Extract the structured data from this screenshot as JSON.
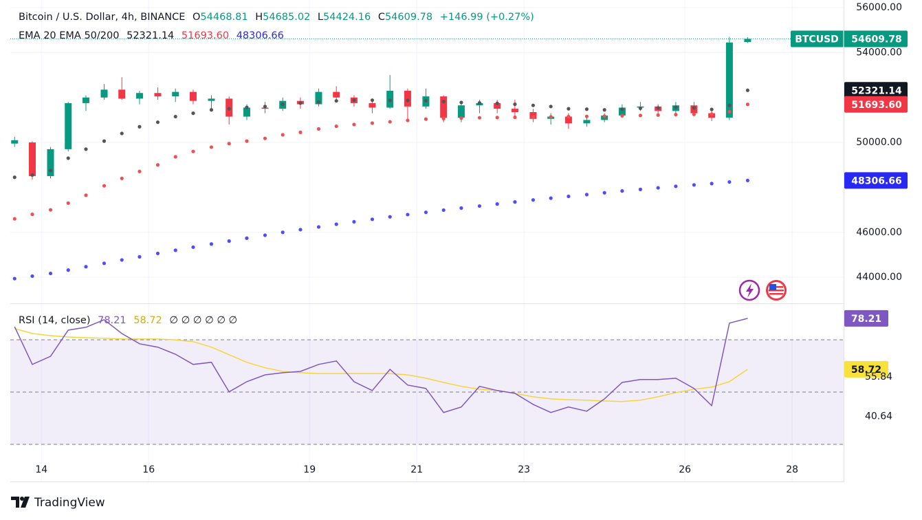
{
  "chart_data": [
    {
      "type": "candlestick",
      "title": "Bitcoin / U.S. Dollar, 4h, BINANCE",
      "ohlc_prefixes": [
        "O",
        "H",
        "L",
        "C"
      ],
      "change": "+146.99 (+0.27%)",
      "symbol": "BTCUSD",
      "indicator_label": "EMA 20 EMA 50/200",
      "up_color": "#089981",
      "down_color": "#f23645",
      "x": [
        13.5,
        13.83,
        14.17,
        14.5,
        14.83,
        15.17,
        15.5,
        15.83,
        16.17,
        16.5,
        16.83,
        17.17,
        17.5,
        17.83,
        18.17,
        18.5,
        18.83,
        19.17,
        19.5,
        19.83,
        20.17,
        20.5,
        20.83,
        21.17,
        21.5,
        21.83,
        22.17,
        22.5,
        22.83,
        23.17,
        23.5,
        23.83,
        24.17,
        24.5,
        24.83,
        25.17,
        25.5,
        25.83,
        26.17,
        26.5,
        26.83,
        27.17
      ],
      "open": [
        49950,
        50000,
        48500,
        49700,
        51750,
        52000,
        52350,
        51950,
        52200,
        52050,
        52250,
        51850,
        51950,
        51150,
        51550,
        51500,
        51850,
        51700,
        52250,
        52000,
        51750,
        51550,
        52300,
        51600,
        52050,
        51100,
        51650,
        51750,
        51500,
        51350,
        51050,
        51150,
        50850,
        51000,
        51200,
        51550,
        51600,
        51400,
        51650,
        51300,
        51100,
        54468.81
      ],
      "high": [
        50250,
        50050,
        49800,
        51800,
        52100,
        52600,
        52900,
        52300,
        52450,
        52400,
        52350,
        52100,
        52050,
        51700,
        51800,
        52000,
        52000,
        52400,
        52500,
        52100,
        51900,
        53000,
        52400,
        52400,
        52100,
        51800,
        51900,
        51900,
        51900,
        51500,
        51300,
        51300,
        51100,
        51300,
        51700,
        51800,
        51700,
        51800,
        51800,
        51500,
        54700,
        54685.02
      ],
      "low": [
        49800,
        48350,
        48400,
        49600,
        51400,
        51900,
        51900,
        51700,
        51900,
        51800,
        51700,
        51500,
        50800,
        51000,
        51300,
        51400,
        51500,
        51600,
        51900,
        51600,
        51300,
        51500,
        51000,
        51500,
        50900,
        50900,
        51300,
        51300,
        51200,
        50900,
        50800,
        50600,
        50700,
        50900,
        51100,
        51400,
        51200,
        51300,
        51200,
        50950,
        51000,
        54424.16
      ],
      "close": [
        50100,
        48500,
        49700,
        51750,
        52000,
        52350,
        51950,
        52200,
        52050,
        52250,
        51850,
        51950,
        51150,
        51550,
        51500,
        51850,
        51700,
        52250,
        52000,
        51750,
        51550,
        52300,
        51600,
        52050,
        51100,
        51650,
        51750,
        51500,
        51350,
        51050,
        51150,
        50850,
        51000,
        51200,
        51550,
        51600,
        51400,
        51650,
        51300,
        51100,
        54450,
        54609.78
      ],
      "series": [
        {
          "color": "#555555",
          "last_label": "52321.14",
          "values": [
            48450,
            48550,
            48750,
            49300,
            49700,
            50060,
            50400,
            50700,
            50900,
            51150,
            51300,
            51450,
            51500,
            51560,
            51600,
            51700,
            51750,
            51800,
            51850,
            51880,
            51880,
            51870,
            51870,
            51860,
            51820,
            51780,
            51760,
            51740,
            51700,
            51650,
            51600,
            51500,
            51480,
            51450,
            51480,
            51520,
            51540,
            51560,
            51540,
            51470,
            51650,
            52321.14
          ]
        },
        {
          "color": "#f0504f",
          "last_label": "51693.60",
          "values": [
            46600,
            46800,
            47000,
            47300,
            47650,
            48070,
            48400,
            48710,
            49000,
            49360,
            49600,
            49790,
            49950,
            50060,
            50180,
            50340,
            50450,
            50600,
            50720,
            50800,
            50860,
            50920,
            50980,
            51040,
            51060,
            51080,
            51100,
            51110,
            51120,
            51130,
            51140,
            51150,
            51160,
            51170,
            51190,
            51200,
            51220,
            51240,
            51250,
            51260,
            51370,
            51693.6
          ]
        },
        {
          "color": "#4d4dff",
          "last_label": "48306.66",
          "values": [
            43940,
            44050,
            44170,
            44320,
            44470,
            44620,
            44770,
            44910,
            45060,
            45200,
            45340,
            45480,
            45610,
            45740,
            45870,
            46000,
            46120,
            46240,
            46360,
            46470,
            46580,
            46690,
            46790,
            46890,
            46990,
            47080,
            47170,
            47260,
            47350,
            47440,
            47520,
            47600,
            47680,
            47760,
            47840,
            47910,
            47980,
            48050,
            48110,
            48170,
            48240,
            48306.66
          ]
        }
      ],
      "xlim": [
        13.42,
        28.96
      ],
      "xticks": [
        14,
        16,
        19,
        21,
        23,
        26,
        28
      ],
      "ylim": [
        42870,
        56340
      ],
      "yticks": [
        {
          "value": 44000,
          "label": "44000.00"
        },
        {
          "value": 46000,
          "label": "46000.00"
        },
        {
          "value": 50000,
          "label": "50000.00"
        },
        {
          "value": 54000,
          "label": "54000.00"
        },
        {
          "value": 56000,
          "label": "56000.00"
        }
      ],
      "grid": true
    },
    {
      "type": "line",
      "title": "RSI (14, close)",
      "placeholders": "∅ ∅ ∅ ∅ ∅ ∅",
      "series": [
        {
          "color": "#7e57c2",
          "label_color": "#7e57c2",
          "values": [
            75.05,
            60.6,
            63.7,
            73.7,
            74.8,
            77.7,
            72.4,
            68.5,
            67.2,
            64.5,
            60.6,
            61.4,
            50.1,
            54.0,
            56.6,
            57.4,
            57.9,
            60.6,
            61.9,
            54.0,
            50.6,
            58.7,
            52.7,
            51.4,
            42.2,
            44.3,
            52.2,
            50.6,
            49.5,
            45.3,
            42.2,
            44.3,
            42.7,
            47.4,
            53.7,
            54.8,
            54.8,
            55.3,
            51.4,
            44.8,
            76.4,
            78.21
          ]
        },
        {
          "color": "#f7d43a",
          "label_color": "#d4ac0d",
          "values": [
            74.3,
            72.4,
            71.6,
            71.1,
            70.8,
            70.6,
            70.3,
            70.3,
            70.3,
            70.0,
            69.3,
            67.2,
            64.3,
            61.4,
            59.3,
            57.9,
            57.4,
            57.1,
            57.1,
            57.1,
            57.1,
            57.1,
            56.6,
            55.3,
            53.7,
            52.2,
            51.1,
            50.6,
            49.5,
            48.2,
            47.4,
            47.1,
            46.9,
            46.6,
            46.4,
            46.9,
            48.2,
            49.8,
            51.1,
            51.9,
            54.0,
            58.72
          ]
        }
      ],
      "levels": [
        70,
        50,
        30
      ],
      "ylim": [
        15.8,
        83.7
      ],
      "yticks": [
        40.64,
        55.84
      ]
    }
  ],
  "footer": "TradingView"
}
